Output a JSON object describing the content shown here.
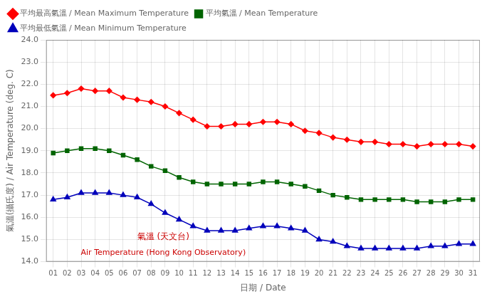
{
  "chart_data": {
    "type": "line",
    "x": [
      1,
      2,
      3,
      4,
      5,
      6,
      7,
      8,
      9,
      10,
      11,
      12,
      13,
      14,
      15,
      16,
      17,
      18,
      19,
      20,
      21,
      22,
      23,
      24,
      25,
      26,
      27,
      28,
      29,
      30,
      31
    ],
    "series": [
      {
        "name": "平均最高氣溫 / Mean Maximum Temperature",
        "color": "#FF0000",
        "marker": "diamond",
        "values": [
          21.5,
          21.6,
          21.8,
          21.7,
          21.7,
          21.4,
          21.3,
          21.2,
          21.0,
          20.7,
          20.4,
          20.1,
          20.1,
          20.2,
          20.2,
          20.3,
          20.3,
          20.2,
          19.9,
          19.8,
          19.6,
          19.5,
          19.4,
          19.4,
          19.3,
          19.3,
          19.2,
          19.3,
          19.3,
          19.3,
          19.2
        ]
      },
      {
        "name": "平均氣溫 / Mean Temperature",
        "color": "#006400",
        "marker": "square",
        "values": [
          18.9,
          19.0,
          19.1,
          19.1,
          19.0,
          18.8,
          18.6,
          18.3,
          18.1,
          17.8,
          17.6,
          17.5,
          17.5,
          17.5,
          17.5,
          17.6,
          17.6,
          17.5,
          17.4,
          17.2,
          17.0,
          16.9,
          16.8,
          16.8,
          16.8,
          16.8,
          16.7,
          16.7,
          16.7,
          16.8,
          16.8
        ]
      },
      {
        "name": "平均最低氣溫 / Mean Minimum Temperature",
        "color": "#0000BB",
        "marker": "triangle",
        "values": [
          16.8,
          16.9,
          17.1,
          17.1,
          17.1,
          17.0,
          16.9,
          16.6,
          16.2,
          15.9,
          15.6,
          15.4,
          15.4,
          15.4,
          15.5,
          15.6,
          15.6,
          15.5,
          15.4,
          15.0,
          14.9,
          14.7,
          14.6,
          14.6,
          14.6,
          14.6,
          14.6,
          14.7,
          14.7,
          14.8,
          14.8
        ]
      }
    ],
    "xlabel": "日期 / Date",
    "ylabel": "氣溫(攝氏度) / Air Temperature (deg. C)",
    "xlim": [
      0.5,
      31.5
    ],
    "xticks": [
      {
        "value": 1,
        "label": "01"
      },
      {
        "value": 2,
        "label": "02"
      },
      {
        "value": 3,
        "label": "03"
      },
      {
        "value": 4,
        "label": "04"
      },
      {
        "value": 5,
        "label": "05"
      },
      {
        "value": 6,
        "label": "06"
      },
      {
        "value": 7,
        "label": "07"
      },
      {
        "value": 8,
        "label": "08"
      },
      {
        "value": 9,
        "label": "09"
      },
      {
        "value": 10,
        "label": "10"
      },
      {
        "value": 11,
        "label": "11"
      },
      {
        "value": 12,
        "label": "12"
      },
      {
        "value": 13,
        "label": "13"
      },
      {
        "value": 14,
        "label": "14"
      },
      {
        "value": 15,
        "label": "15"
      },
      {
        "value": 16,
        "label": "16"
      },
      {
        "value": 17,
        "label": "17"
      },
      {
        "value": 18,
        "label": "18"
      },
      {
        "value": 19,
        "label": "19"
      },
      {
        "value": 20,
        "label": "20"
      },
      {
        "value": 21,
        "label": "21"
      },
      {
        "value": 22,
        "label": "22"
      },
      {
        "value": 23,
        "label": "23"
      },
      {
        "value": 24,
        "label": "24"
      },
      {
        "value": 25,
        "label": "25"
      },
      {
        "value": 26,
        "label": "26"
      },
      {
        "value": 27,
        "label": "27"
      },
      {
        "value": 28,
        "label": "28"
      },
      {
        "value": 29,
        "label": "29"
      },
      {
        "value": 30,
        "label": "30"
      },
      {
        "value": 31,
        "label": "31"
      }
    ],
    "ylim": [
      14.0,
      24.0
    ],
    "yticks": [
      {
        "value": 14.0,
        "label": "14.0"
      },
      {
        "value": 15.0,
        "label": "15.0"
      },
      {
        "value": 16.0,
        "label": "16.0"
      },
      {
        "value": 17.0,
        "label": "17.0"
      },
      {
        "value": 18.0,
        "label": "18.0"
      },
      {
        "value": 19.0,
        "label": "19.0"
      },
      {
        "value": 20.0,
        "label": "20.0"
      },
      {
        "value": 21.0,
        "label": "21.0"
      },
      {
        "value": 22.0,
        "label": "22.0"
      },
      {
        "value": 23.0,
        "label": "23.0"
      },
      {
        "value": 24.0,
        "label": "24.0"
      }
    ],
    "grid": true,
    "legend": "upper left",
    "annotations": [
      {
        "text": "氣溫 (天文台)",
        "color": "#CC0000"
      },
      {
        "text": "Air Temperature (Hong Kong Observatory)",
        "color": "#CC0000"
      }
    ]
  }
}
